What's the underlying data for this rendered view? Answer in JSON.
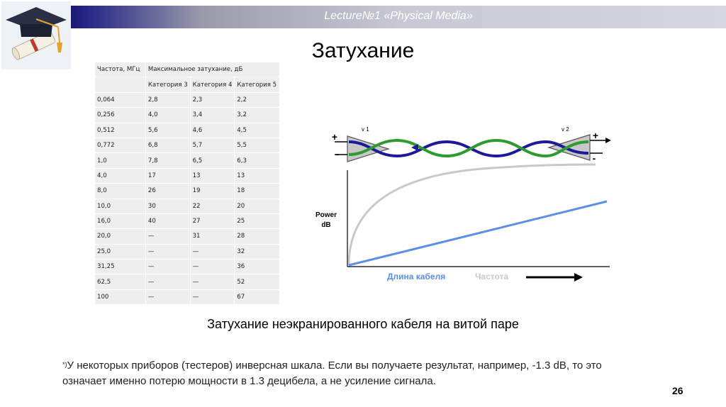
{
  "header": {
    "lecture": "Lecture№1 «Physical Media»"
  },
  "slide": {
    "title": "Затухание",
    "caption": "Затухание неэкранированного кабеля на витой паре",
    "footnote_mark": "*)",
    "footnote_text": "У некоторых приборов (тестеров) инверсная шкала. Если вы получаете результат, например, -1.3 dB, то это означает именно потерю мощности в 1.3 децибела, а не усиление сигнала.",
    "page_number": "26"
  },
  "table": {
    "col0_header": "Частота, МГц",
    "group_header": "Максимальное затухание, дБ",
    "sub_headers": [
      "Категория 3",
      "Категория 4",
      "Категория 5"
    ],
    "rows": [
      [
        "0,064",
        "2,8",
        "2,3",
        "2,2"
      ],
      [
        "0,256",
        "4,0",
        "3,4",
        "3,2"
      ],
      [
        "0,512",
        "5,6",
        "4,6",
        "4,5"
      ],
      [
        "0,772",
        "6,8",
        "5,7",
        "5,5"
      ],
      [
        "1,0",
        "7,8",
        "6,5",
        "6,3"
      ],
      [
        "4,0",
        "17",
        "13",
        "13"
      ],
      [
        "8,0",
        "26",
        "19",
        "18"
      ],
      [
        "10,0",
        "30",
        "22",
        "20"
      ],
      [
        "16,0",
        "40",
        "27",
        "25"
      ],
      [
        "20,0",
        "—",
        "31",
        "28"
      ],
      [
        "25,0",
        "—",
        "—",
        "32"
      ],
      [
        "31,25",
        "—",
        "—",
        "36"
      ],
      [
        "62,5",
        "—",
        "—",
        "52"
      ],
      [
        "100",
        "—",
        "—",
        "67"
      ]
    ]
  },
  "diagram": {
    "v1_label": "v 1",
    "v2_label": "v 2",
    "plus": "+",
    "minus": "-",
    "y_label_line1": "Power",
    "y_label_line2": "dB",
    "legend_length": "Длина кабеля",
    "legend_frequency": "Частота",
    "colors": {
      "length": "#5b8ee6",
      "frequency": "#c8c8c8",
      "green": "#2f9a2f",
      "blue": "#1a1a9a"
    }
  }
}
